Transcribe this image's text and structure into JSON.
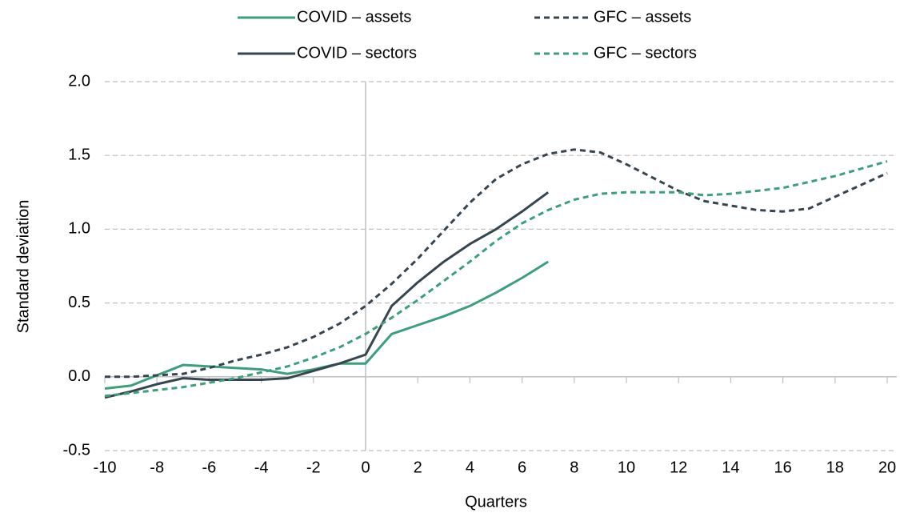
{
  "chart_data": {
    "type": "line",
    "x_label": "Quarters",
    "y_label": "Standard deviation",
    "x": [
      -10,
      -9,
      -8,
      -7,
      -6,
      -5,
      -4,
      -3,
      -2,
      -1,
      0,
      1,
      2,
      3,
      4,
      5,
      6,
      7,
      8,
      9,
      10,
      11,
      12,
      13,
      14,
      15,
      16,
      17,
      18,
      19,
      20
    ],
    "series": [
      {
        "name": "COVID – assets",
        "color": "#3a9f7a",
        "dashed": false,
        "values": [
          -0.08,
          -0.06,
          0.01,
          0.08,
          0.07,
          0.06,
          0.05,
          0.02,
          0.05,
          0.09,
          0.09,
          0.29,
          0.35,
          0.41,
          0.48,
          0.57,
          0.67,
          0.78,
          null,
          null,
          null,
          null,
          null,
          null,
          null,
          null,
          null,
          null,
          null,
          null,
          null
        ]
      },
      {
        "name": "COVID – sectors",
        "color": "#36454f",
        "dashed": false,
        "values": [
          -0.14,
          -0.1,
          -0.05,
          -0.01,
          -0.02,
          -0.02,
          -0.02,
          -0.01,
          0.04,
          0.09,
          0.15,
          0.48,
          0.64,
          0.78,
          0.9,
          1.0,
          1.12,
          1.25,
          null,
          null,
          null,
          null,
          null,
          null,
          null,
          null,
          null,
          null,
          null,
          null,
          null
        ]
      },
      {
        "name": "GFC – assets",
        "color": "#36454f",
        "dashed": true,
        "values": [
          0,
          0,
          0.01,
          0.02,
          0.06,
          0.11,
          0.15,
          0.2,
          0.27,
          0.36,
          0.48,
          0.63,
          0.8,
          0.99,
          1.18,
          1.34,
          1.44,
          1.51,
          1.54,
          1.52,
          1.44,
          1.35,
          1.26,
          1.19,
          1.16,
          1.13,
          1.12,
          1.14,
          1.22,
          1.3,
          1.38
        ]
      },
      {
        "name": "GFC – sectors",
        "color": "#3a9f7a",
        "dashed": true,
        "values": [
          -0.13,
          -0.11,
          -0.09,
          -0.07,
          -0.04,
          -0.01,
          0.03,
          0.07,
          0.13,
          0.2,
          0.29,
          0.4,
          0.52,
          0.65,
          0.78,
          0.92,
          1.04,
          1.13,
          1.2,
          1.24,
          1.25,
          1.25,
          1.25,
          1.23,
          1.24,
          1.26,
          1.28,
          1.32,
          1.36,
          1.41,
          1.46
        ]
      }
    ],
    "xlim": [
      -10,
      20
    ],
    "xticks": [
      -10,
      -8,
      -6,
      -4,
      -2,
      0,
      2,
      4,
      6,
      8,
      10,
      12,
      14,
      16,
      18,
      20
    ],
    "ylim": [
      -0.5,
      2.0
    ],
    "yticks": [
      {
        "value": -0.5,
        "label": "-0.5"
      },
      {
        "value": 0,
        "label": "0.0"
      },
      {
        "value": 0.5,
        "label": "0.5"
      },
      {
        "value": 1,
        "label": "1.0"
      },
      {
        "value": 1.5,
        "label": "1.5"
      },
      {
        "value": 2,
        "label": "2.0"
      }
    ],
    "grid": true,
    "legend": "top"
  }
}
